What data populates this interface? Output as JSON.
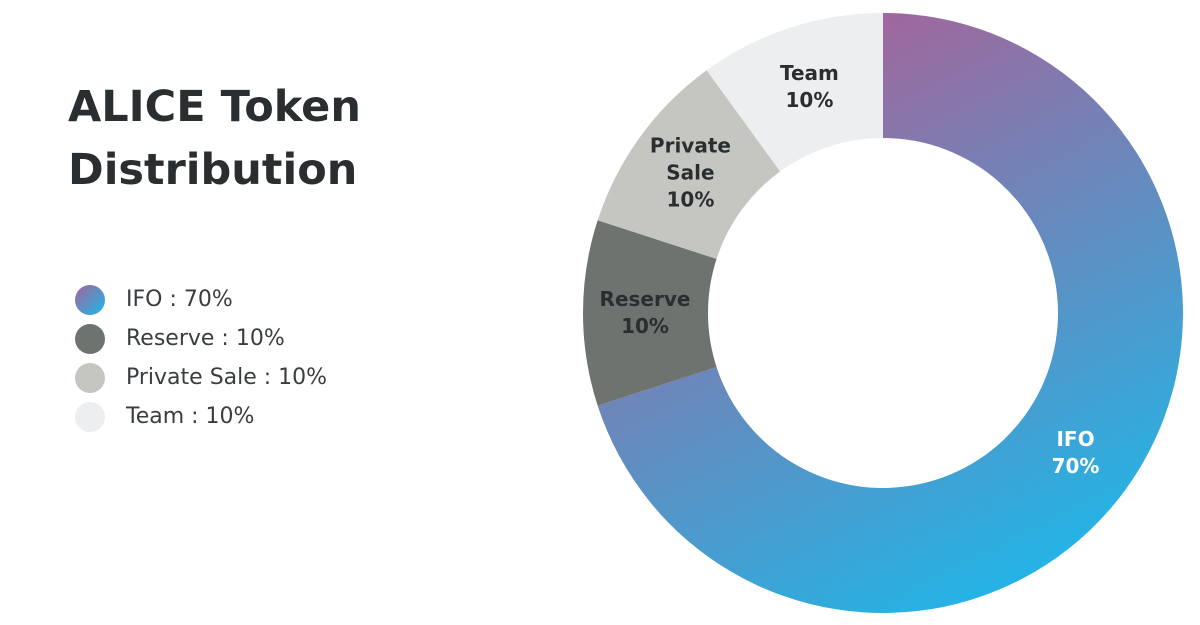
{
  "chart_data": {
    "type": "donut",
    "title": "ALICE Token Distribution",
    "categories": [
      "IFO",
      "Reserve",
      "Private Sale",
      "Team"
    ],
    "values": [
      70,
      10,
      10,
      10
    ],
    "value_labels": [
      "70%",
      "10%",
      "10%",
      "10%"
    ],
    "legend_labels": [
      "IFO : 70%",
      "Reserve : 10%",
      "Private Sale : 10%",
      "Team : 10%"
    ],
    "colors": [
      "#1cb8e9",
      "#6f7370",
      "#c5c6c2",
      "#eceeef"
    ],
    "gradient_start": "#a3659b",
    "label_colors": [
      "#ffffff",
      "#2b2e31",
      "#2b2e31",
      "#2b2e31"
    ]
  }
}
